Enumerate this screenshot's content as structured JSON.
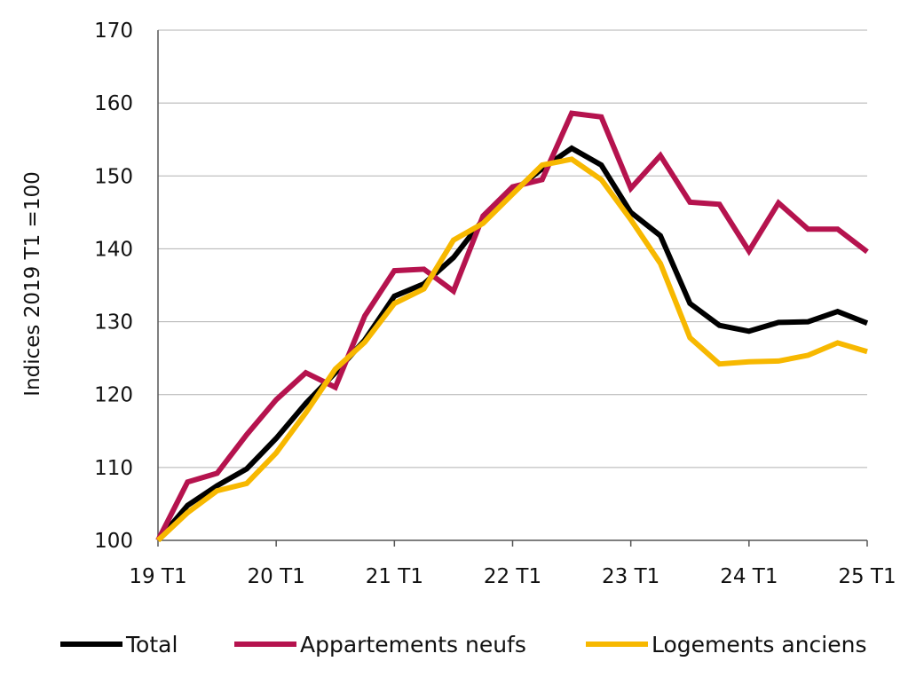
{
  "chart_data": {
    "type": "line",
    "ylabel": "Indices 2019 T1 =100",
    "ylim": [
      100,
      170
    ],
    "y_ticks": [
      100,
      110,
      120,
      130,
      140,
      150,
      160,
      170
    ],
    "x_tick_labels": [
      "19 T1",
      "20 T1",
      "21 T1",
      "22 T1",
      "23 T1",
      "24 T1",
      "25 T1"
    ],
    "grid": "horizontal",
    "legend_position": "bottom",
    "x": [
      "19 T1",
      "19 T2",
      "19 T3",
      "19 T4",
      "20 T1",
      "20 T2",
      "20 T3",
      "20 T4",
      "21 T1",
      "21 T2",
      "21 T3",
      "21 T4",
      "22 T1",
      "22 T2",
      "22 T3",
      "22 T4",
      "23 T1",
      "23 T2",
      "23 T3",
      "23 T4",
      "24 T1",
      "24 T2",
      "24 T3",
      "24 T4",
      "25 T1"
    ],
    "series": [
      {
        "name": "Total",
        "color": "#000000",
        "values": [
          100.0,
          104.8,
          107.5,
          109.8,
          114.0,
          118.8,
          123.0,
          127.5,
          133.5,
          135.2,
          138.8,
          144.0,
          147.8,
          151.0,
          153.8,
          151.5,
          145.0,
          141.8,
          132.5,
          129.5,
          128.7,
          129.9,
          130.0,
          131.4,
          129.8
        ]
      },
      {
        "name": "Appartements neufs",
        "color": "#B5134E",
        "values": [
          100.0,
          108.0,
          109.2,
          114.5,
          119.3,
          123.0,
          121.0,
          130.8,
          137.0,
          137.2,
          134.2,
          144.5,
          148.5,
          149.5,
          158.6,
          158.1,
          148.3,
          152.8,
          146.4,
          146.1,
          139.7,
          146.3,
          142.7,
          142.7,
          139.6
        ]
      },
      {
        "name": "Logements anciens",
        "color": "#F7B800",
        "values": [
          100.0,
          103.8,
          106.8,
          107.8,
          112.0,
          117.5,
          123.5,
          127.2,
          132.5,
          134.5,
          141.2,
          143.5,
          147.5,
          151.5,
          152.3,
          149.5,
          144.0,
          138.0,
          127.8,
          124.2,
          124.5,
          124.6,
          125.4,
          127.1,
          125.9
        ]
      }
    ]
  }
}
